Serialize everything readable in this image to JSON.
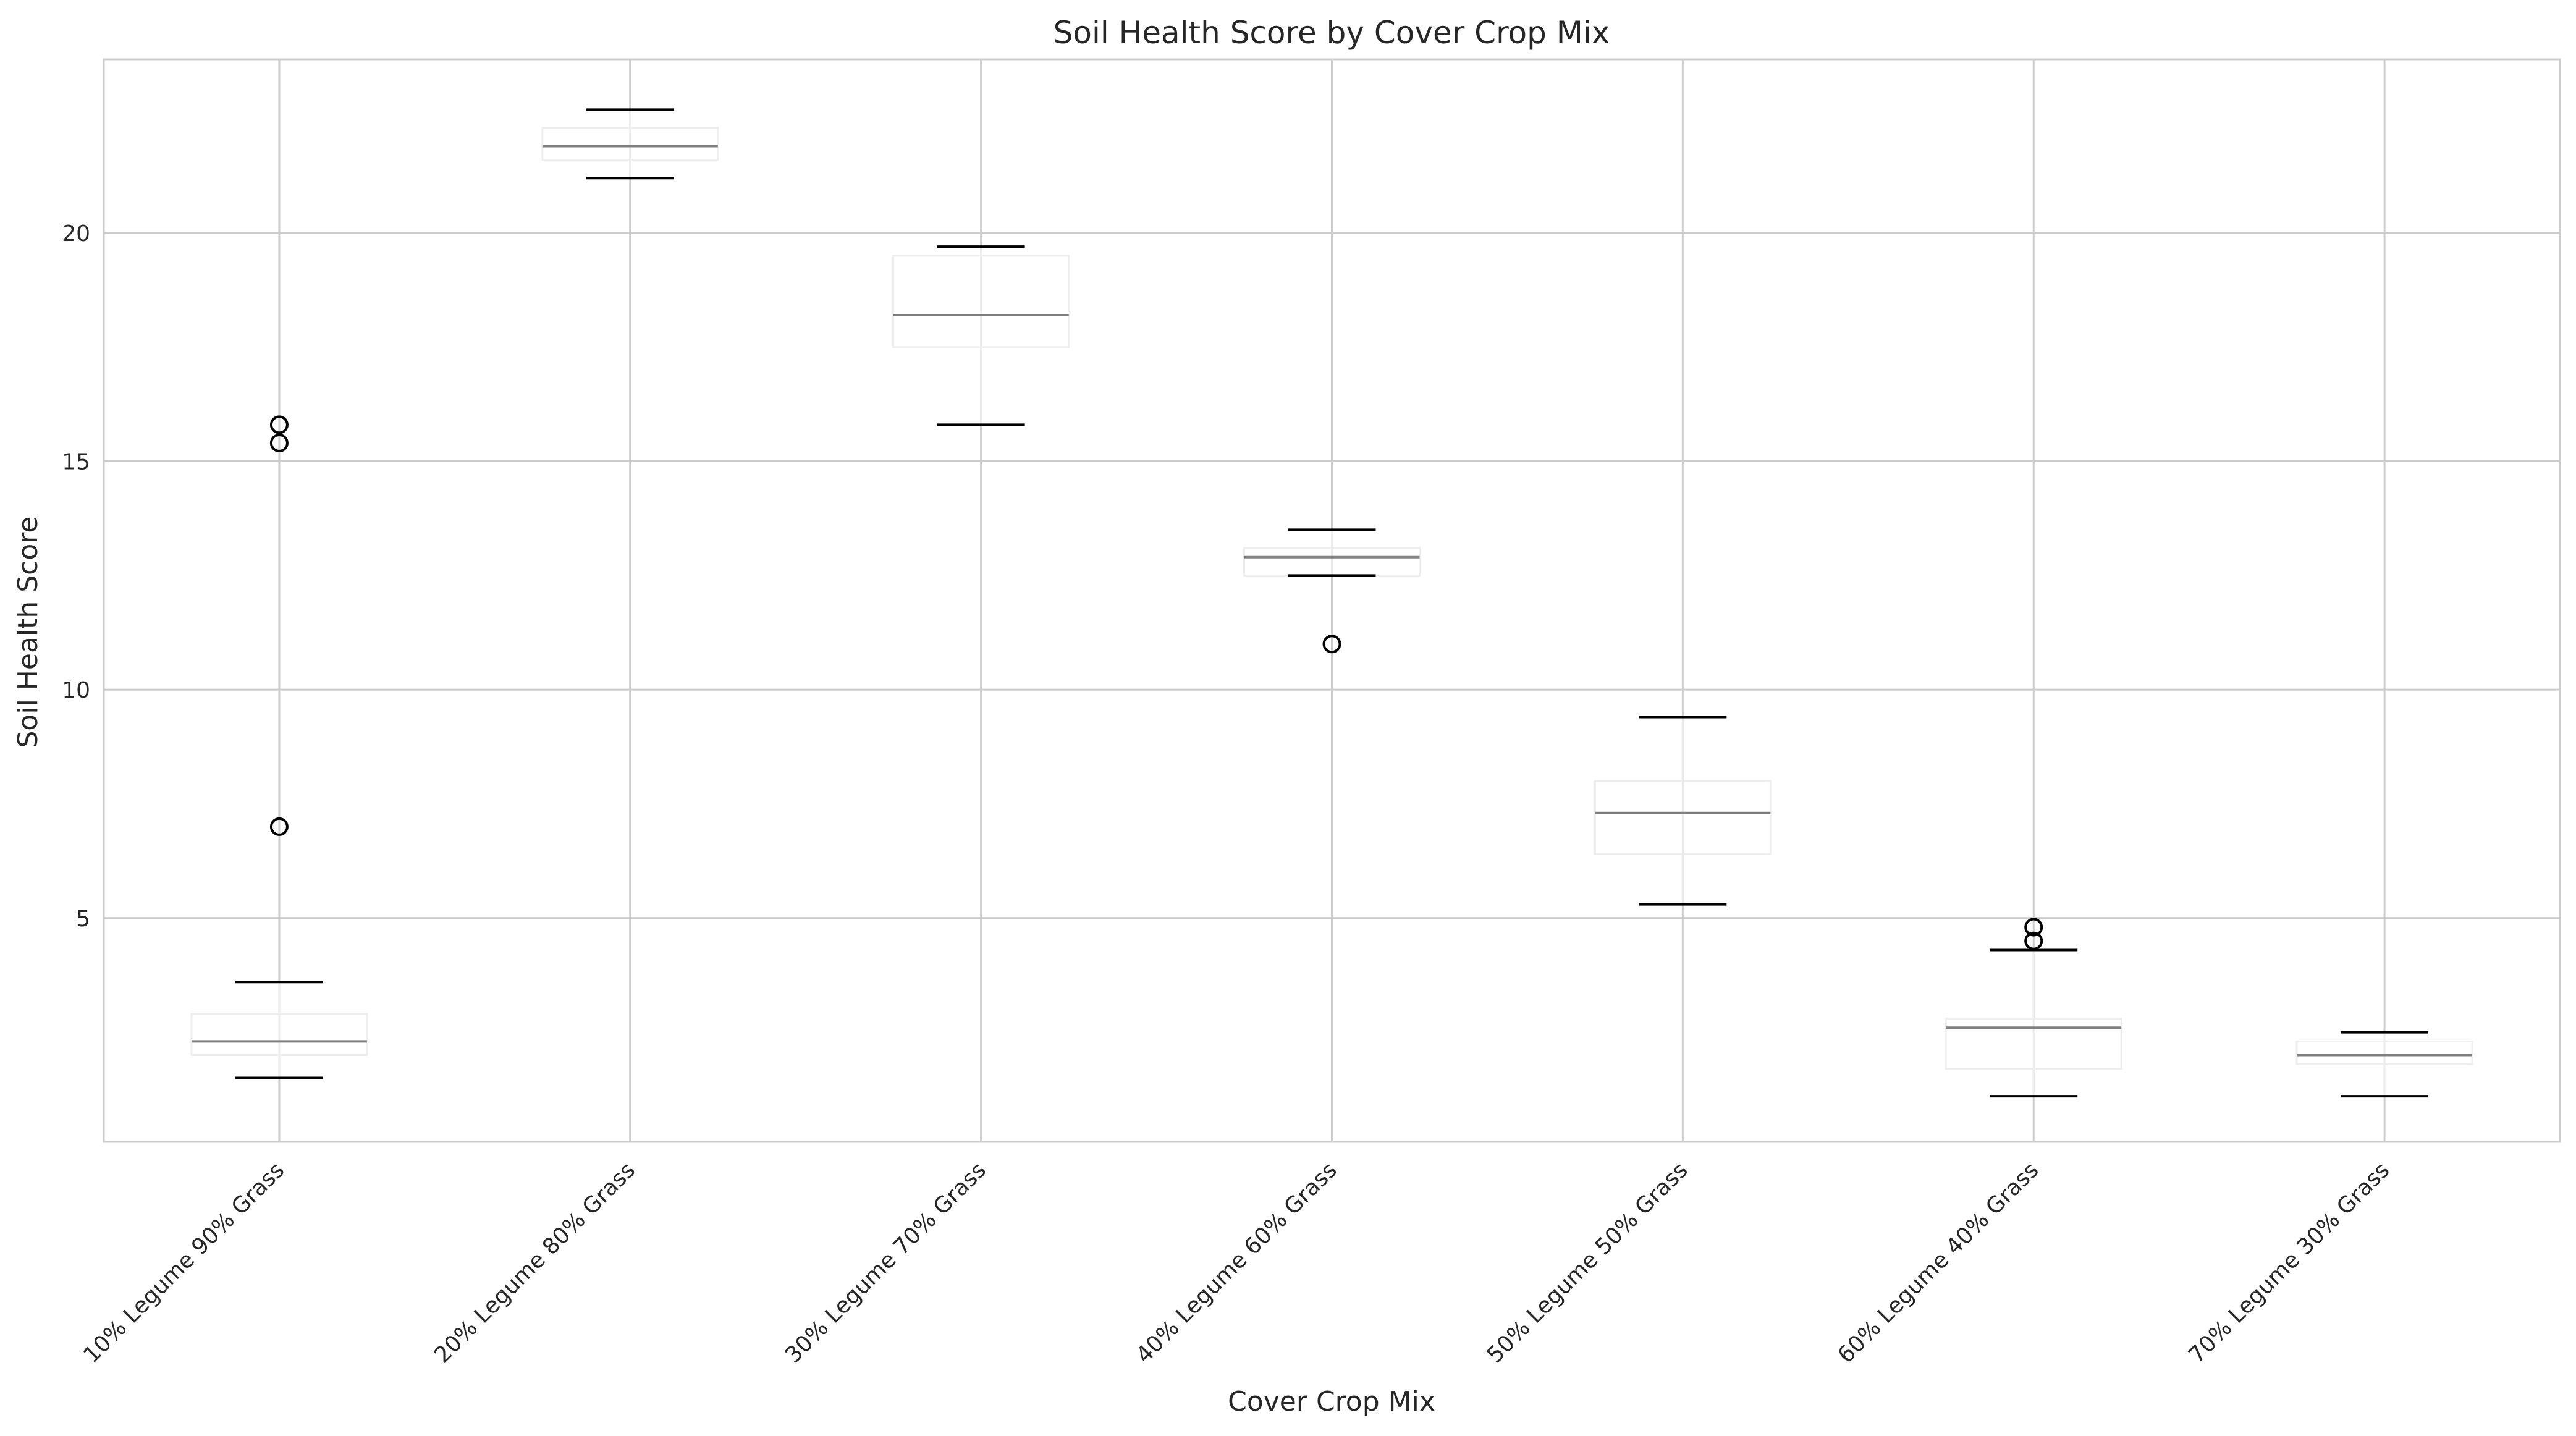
{
  "chart_data": {
    "type": "box",
    "title": "Soil Health Score by Cover Crop Mix",
    "xlabel": "Cover Crop Mix",
    "ylabel": "Soil Health Score",
    "ylim": [
      0.1,
      23.8
    ],
    "yticks": [
      5,
      10,
      15,
      20
    ],
    "grid": true,
    "categories": [
      "10% Legume 90% Grass",
      "20% Legume 80% Grass",
      "30% Legume 70% Grass",
      "40% Legume 60% Grass",
      "50% Legume 50% Grass",
      "60% Legume 40% Grass",
      "70% Legume 30% Grass"
    ],
    "boxes": [
      {
        "whisker_low": 1.5,
        "q1": 2.0,
        "median": 2.3,
        "q3": 2.9,
        "whisker_high": 3.6,
        "outliers": [
          7.0,
          15.4,
          15.8
        ]
      },
      {
        "whisker_low": 21.2,
        "q1": 21.6,
        "median": 21.9,
        "q3": 22.3,
        "whisker_high": 22.7,
        "outliers": []
      },
      {
        "whisker_low": 15.8,
        "q1": 17.5,
        "median": 18.2,
        "q3": 19.5,
        "whisker_high": 19.7,
        "outliers": []
      },
      {
        "whisker_low": 12.5,
        "q1": 12.5,
        "median": 12.9,
        "q3": 13.1,
        "whisker_high": 13.5,
        "outliers": [
          11.0
        ]
      },
      {
        "whisker_low": 5.3,
        "q1": 6.4,
        "median": 7.3,
        "q3": 8.0,
        "whisker_high": 9.4,
        "outliers": []
      },
      {
        "whisker_low": 1.1,
        "q1": 1.7,
        "median": 2.6,
        "q3": 2.8,
        "whisker_high": 4.3,
        "outliers": [
          4.5,
          4.8
        ]
      },
      {
        "whisker_low": 1.1,
        "q1": 1.8,
        "median": 2.0,
        "q3": 2.3,
        "whisker_high": 2.5,
        "outliers": []
      }
    ],
    "colors": {
      "grid": "#cccccc",
      "axes_edge": "#cccccc",
      "box_edge": "#eeeeee",
      "median": "#808080",
      "whisker_cap": "#000000",
      "outlier_edge": "#000000"
    }
  }
}
